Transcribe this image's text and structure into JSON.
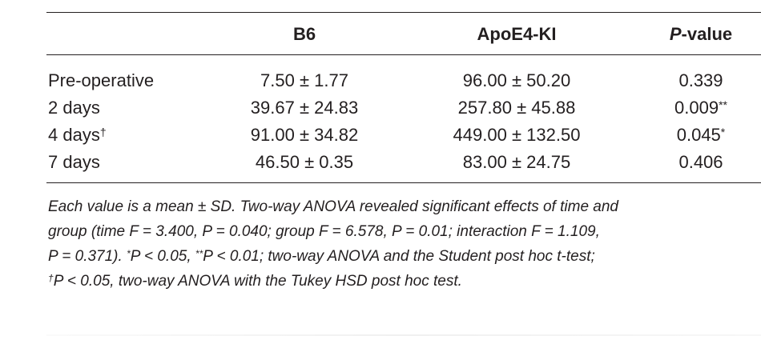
{
  "table": {
    "headers": {
      "b6": "B6",
      "apoe": "ApoE4-KI",
      "p_italic": "P",
      "p_rest": "-value"
    },
    "rows": [
      {
        "label": "Pre-operative",
        "label_mark": "",
        "b6": "7.50 ± 1.77",
        "apoe": "96.00 ± 50.20",
        "p": "0.339",
        "p_mark": ""
      },
      {
        "label": "2 days",
        "label_mark": "",
        "b6": "39.67 ± 24.83",
        "apoe": "257.80 ± 45.88",
        "p": "0.009",
        "p_mark": "**"
      },
      {
        "label": "4 days",
        "label_mark": "†",
        "b6": "91.00 ± 34.82",
        "apoe": "449.00 ± 132.50",
        "p": "0.045",
        "p_mark": "*"
      },
      {
        "label": "7 days",
        "label_mark": "",
        "b6": "46.50 ± 0.35",
        "apoe": "83.00 ± 24.75",
        "p": "0.406",
        "p_mark": ""
      }
    ]
  },
  "footnote": {
    "line1": "Each value is a mean ± SD. Two-way ANOVA revealed significant effects of time and",
    "line2": "group (time F = 3.400, P = 0.040; group F = 6.578, P = 0.01; interaction F = 1.109,",
    "line3_a": "P = 0.371). ",
    "line3_star1": "*",
    "line3_b": "P < 0.05, ",
    "line3_star2": "**",
    "line3_c": "P < 0.01; two-way ANOVA and the Student post hoc t-test;",
    "line4_dagger": "†",
    "line4_rest": "P < 0.05, two-way ANOVA with the Tukey HSD post hoc test."
  }
}
